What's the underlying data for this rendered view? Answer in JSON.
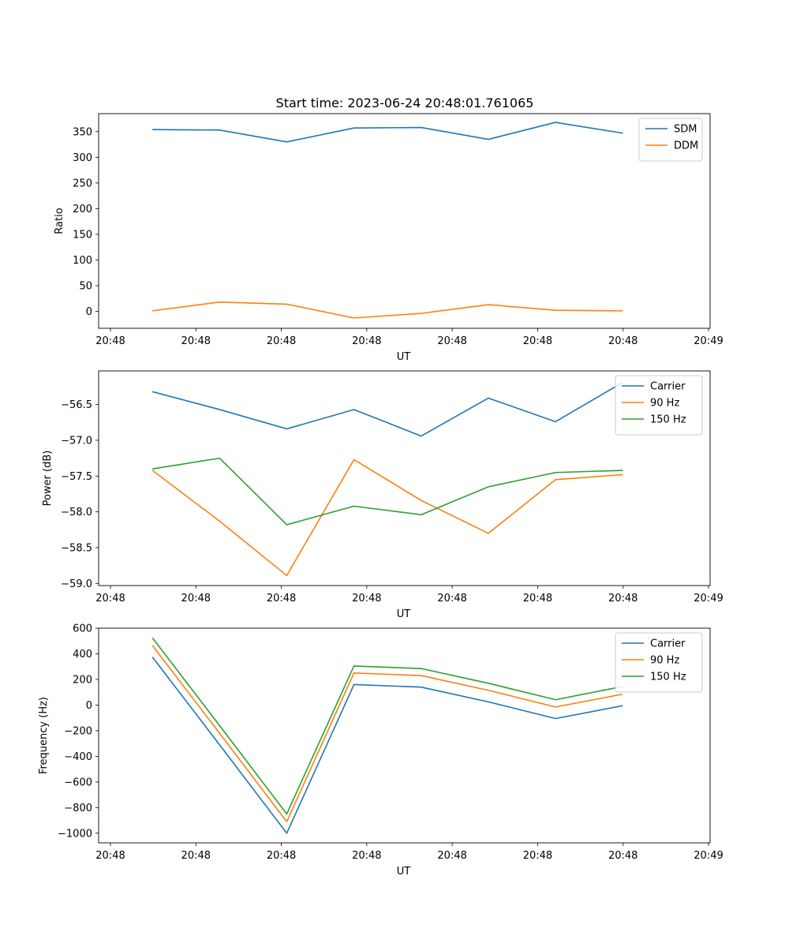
{
  "figure": {
    "title": "Start time: 2023-06-24 20:48:01.761065"
  },
  "colors": {
    "blue": "#1f77b4",
    "orange": "#ff7f0e",
    "green": "#2ca02c"
  },
  "chart_data": [
    {
      "type": "line",
      "title": "Start time: 2023-06-24 20:48:01.761065",
      "xlabel": "UT",
      "ylabel": "Ratio",
      "x": [
        "20:48:02",
        "20:48:03",
        "20:48:04",
        "20:48:05",
        "20:48:06",
        "20:48:07",
        "20:48:08",
        "20:48:09"
      ],
      "xlim": [
        "20:48:01.2",
        "20:48:10.3"
      ],
      "xtick_labels": [
        "20:48",
        "20:48",
        "20:48",
        "20:48",
        "20:48",
        "20:48",
        "20:48",
        "20:49"
      ],
      "ylim": [
        -33,
        385
      ],
      "yticks": [
        0,
        50,
        100,
        150,
        200,
        250,
        300,
        350
      ],
      "ytick_labels": [
        "0",
        "50",
        "100",
        "150",
        "200",
        "250",
        "300",
        "350"
      ],
      "legend_position": "top-right",
      "grid": false,
      "series": [
        {
          "name": "SDM",
          "color": "#1f77b4",
          "values": [
            354,
            353,
            330,
            357,
            358,
            335,
            368,
            347
          ]
        },
        {
          "name": "DDM",
          "color": "#ff7f0e",
          "values": [
            1,
            18,
            14,
            -13,
            -4,
            13,
            2,
            1
          ]
        }
      ]
    },
    {
      "type": "line",
      "title": "",
      "xlabel": "UT",
      "ylabel": "Power (dB)",
      "x": [
        "20:48:02",
        "20:48:03",
        "20:48:04",
        "20:48:05",
        "20:48:06",
        "20:48:07",
        "20:48:08",
        "20:48:09"
      ],
      "xlim": [
        "20:48:01.2",
        "20:48:10.3"
      ],
      "xtick_labels": [
        "20:48",
        "20:48",
        "20:48",
        "20:48",
        "20:48",
        "20:48",
        "20:48",
        "20:49"
      ],
      "ylim": [
        -59.03,
        -56.03
      ],
      "yticks": [
        -59.0,
        -58.5,
        -58.0,
        -57.5,
        -57.0,
        -56.5
      ],
      "ytick_labels": [
        "−59.0",
        "−58.5",
        "−58.0",
        "−57.5",
        "−57.0",
        "−56.5"
      ],
      "legend_position": "top-right",
      "grid": false,
      "series": [
        {
          "name": "Carrier",
          "color": "#1f77b4",
          "values": [
            -56.32,
            -56.57,
            -56.84,
            -56.57,
            -56.94,
            -56.41,
            -56.74,
            -56.19
          ]
        },
        {
          "name": "90 Hz",
          "color": "#ff7f0e",
          "values": [
            -57.42,
            -58.13,
            -58.89,
            -57.27,
            -57.84,
            -58.3,
            -57.55,
            -57.48
          ]
        },
        {
          "name": "150 Hz",
          "color": "#2ca02c",
          "values": [
            -57.4,
            -57.25,
            -58.18,
            -57.92,
            -58.04,
            -57.65,
            -57.45,
            -57.42
          ]
        }
      ]
    },
    {
      "type": "line",
      "title": "",
      "xlabel": "UT",
      "ylabel": "Frequency (Hz)",
      "x": [
        "20:48:02",
        "20:48:03",
        "20:48:04",
        "20:48:05",
        "20:48:06",
        "20:48:07",
        "20:48:08",
        "20:48:09"
      ],
      "xlim": [
        "20:48:01.2",
        "20:48:10.3"
      ],
      "xtick_labels": [
        "20:48",
        "20:48",
        "20:48",
        "20:48",
        "20:48",
        "20:48",
        "20:48",
        "20:49"
      ],
      "ylim": [
        -1075,
        600
      ],
      "yticks": [
        -1000,
        -800,
        -600,
        -400,
        -200,
        0,
        200,
        400,
        600
      ],
      "ytick_labels": [
        "−1000",
        "−800",
        "−600",
        "−400",
        "−200",
        "0",
        "200",
        "400",
        "600"
      ],
      "legend_position": "top-right",
      "grid": false,
      "series": [
        {
          "name": "Carrier",
          "color": "#1f77b4",
          "values": [
            375,
            -310,
            -1000,
            160,
            140,
            25,
            -105,
            -5
          ]
        },
        {
          "name": "90 Hz",
          "color": "#ff7f0e",
          "values": [
            465,
            -220,
            -910,
            250,
            230,
            115,
            -15,
            85
          ]
        },
        {
          "name": "150 Hz",
          "color": "#2ca02c",
          "values": [
            525,
            -160,
            -850,
            305,
            285,
            170,
            42,
            145
          ]
        }
      ]
    }
  ]
}
